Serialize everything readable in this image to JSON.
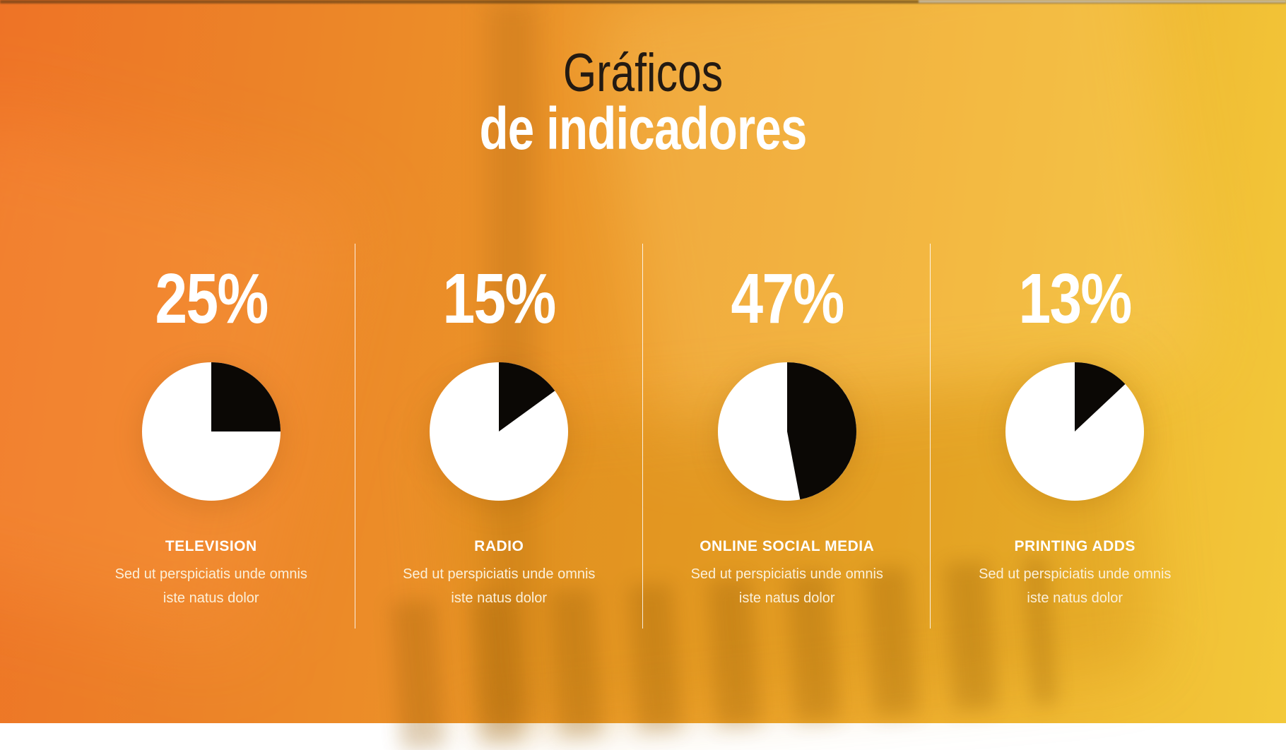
{
  "title": {
    "line1": "Gráficos",
    "line2": "de indicadores"
  },
  "indicators": [
    {
      "percent": "25%",
      "value": 25,
      "label": "TELEVISION",
      "desc_line1": "Sed ut perspiciatis unde omnis",
      "desc_line2": "iste natus dolor"
    },
    {
      "percent": "15%",
      "value": 15,
      "label": "RADIO",
      "desc_line1": "Sed ut perspiciatis unde omnis",
      "desc_line2": "iste natus dolor"
    },
    {
      "percent": "47%",
      "value": 47,
      "label": "ONLINE SOCIAL MEDIA",
      "desc_line1": "Sed ut perspiciatis unde omnis",
      "desc_line2": "iste natus dolor"
    },
    {
      "percent": "13%",
      "value": 13,
      "label": "PRINTING ADDS",
      "desc_line1": "Sed ut perspiciatis unde omnis",
      "desc_line2": "iste natus dolor"
    }
  ],
  "chart_data": [
    {
      "type": "pie",
      "title": "TELEVISION",
      "labels": [
        "filled",
        "remainder"
      ],
      "values": [
        25,
        75
      ],
      "colors": [
        "#0b0805",
        "#ffffff"
      ],
      "annotation": "25%",
      "start_angle_deg": 0,
      "direction": "clockwise",
      "legend": "none"
    },
    {
      "type": "pie",
      "title": "RADIO",
      "labels": [
        "filled",
        "remainder"
      ],
      "values": [
        15,
        85
      ],
      "colors": [
        "#0b0805",
        "#ffffff"
      ],
      "annotation": "15%",
      "start_angle_deg": 0,
      "direction": "clockwise",
      "legend": "none"
    },
    {
      "type": "pie",
      "title": "ONLINE SOCIAL MEDIA",
      "labels": [
        "filled",
        "remainder"
      ],
      "values": [
        47,
        53
      ],
      "colors": [
        "#0b0805",
        "#ffffff"
      ],
      "annotation": "47%",
      "start_angle_deg": 0,
      "direction": "clockwise",
      "legend": "none"
    },
    {
      "type": "pie",
      "title": "PRINTING ADDS",
      "labels": [
        "filled",
        "remainder"
      ],
      "values": [
        13,
        87
      ],
      "colors": [
        "#0b0805",
        "#ffffff"
      ],
      "annotation": "13%",
      "start_angle_deg": 0,
      "direction": "clockwise",
      "legend": "none"
    }
  ],
  "colors": {
    "background_left": "#ee7326",
    "background_right": "#f3c93a",
    "title_dark": "#231a12",
    "text_white": "#ffffff",
    "subtitle_cream": "#fbf0da",
    "pie_filled": "#0b0805",
    "pie_remainder": "#ffffff",
    "divider": "rgba(255,255,255,0.85)"
  }
}
